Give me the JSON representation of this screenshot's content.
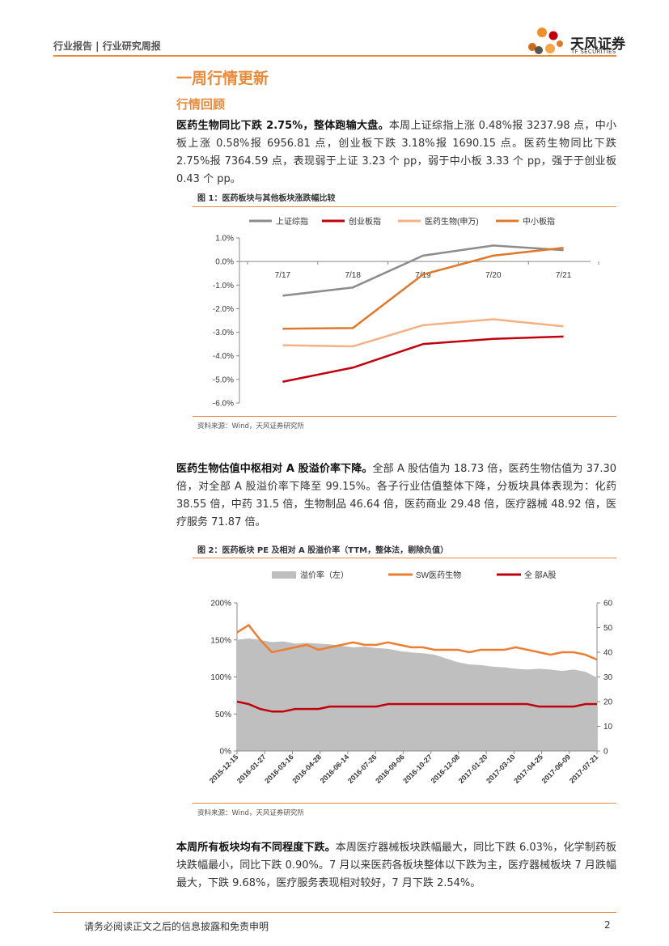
{
  "header": {
    "left_text": "行业报告 | 行业研究周报",
    "logo_text": "天风证券",
    "logo_sub": "TF SECURITIES"
  },
  "section_title": "一周行情更新",
  "subsection_title": "行情回顾",
  "para1": {
    "lead": "医药生物同比下跌 2.75%，整体跑输大盘。",
    "body": "本周上证综指上涨 0.48%报 3237.98 点，中小板上涨 0.58%报 6956.81 点，创业板下跌 3.18%报 1690.15 点。医药生物同比下跌 2.75%报 7364.59 点，表现弱于上证 3.23 个 pp，弱于中小板 3.33 个 pp，强于于创业板 0.43 个 pp。"
  },
  "fig1": {
    "title": "图 1：医药板块与其他板块涨跌幅比较",
    "source": "资料来源：Wind，天风证券研究所"
  },
  "para2": {
    "lead": "医药生物估值中枢相对 A 股溢价率下降。",
    "body": "全部 A 股估值为 18.73 倍，医药生物估值为 37.30 倍，对全部 A 股溢价率下降至 99.15%。各子行业估值整体下降，分板块具体表现为：化药 38.55 倍，中药 31.5 倍，生物制品 46.64 倍，医药商业 29.48 倍，医疗器械 48.92 倍，医疗服务 71.87 倍。"
  },
  "fig2": {
    "title": "图 2：医药板块 PE 及相对 A 股溢价率（TTM，整体法，剔除负值）",
    "source": "资料来源：Wind，天风证券研究所"
  },
  "para3": {
    "lead": "本周所有板块均有不同程度下跌。",
    "body": "本周医疗器械板块跌幅最大，同比下跌 6.03%，化学制药板块跌幅最小，同比下跌 0.90%。7 月以来医药各板块整体以下跌为主，医疗器械板块 7 月跌幅最大，下跌 9.68%，医疗服务表现相对较好，7 月下跌 2.54%。"
  },
  "footer": {
    "text": "请务必阅读正文之后的信息披露和免责申明",
    "page": "2"
  },
  "chart_data": [
    {
      "type": "line",
      "categories": [
        "7/17",
        "7/18",
        "7/19",
        "7/20",
        "7/21"
      ],
      "ylim": [
        -6,
        1
      ],
      "yticks": [
        "1.0%",
        "0.0%",
        "-1.0%",
        "-2.0%",
        "-3.0%",
        "-4.0%",
        "-5.0%",
        "-6.0%"
      ],
      "legend_position": "top",
      "series": [
        {
          "name": "上证综指",
          "color": "#8c8c8c",
          "values": [
            -1.45,
            -1.1,
            0.25,
            0.68,
            0.48
          ]
        },
        {
          "name": "创业板指",
          "color": "#c0000c",
          "values": [
            -5.1,
            -4.5,
            -3.5,
            -3.28,
            -3.18
          ]
        },
        {
          "name": "医药生物(申万)",
          "color": "#f4b183",
          "values": [
            -3.55,
            -3.6,
            -2.7,
            -2.45,
            -2.75
          ]
        },
        {
          "name": "中小板指",
          "color": "#e0782a",
          "values": [
            -2.85,
            -2.82,
            -0.55,
            0.25,
            0.58
          ]
        }
      ]
    },
    {
      "type": "area+line",
      "x_ticks": [
        "2015-12-15",
        "2016-01-27",
        "2016-03-16",
        "2016-04-28",
        "2016-06-14",
        "2016-07-26",
        "2016-09-06",
        "2016-10-27",
        "2016-12-08",
        "2017-01-20",
        "2017-03-10",
        "2017-04-25",
        "2017-06-09",
        "2017-07-21"
      ],
      "y_left_ticks": [
        "200%",
        "150%",
        "100%",
        "50%",
        "0%"
      ],
      "y_right_ticks": [
        "60",
        "50",
        "40",
        "30",
        "20",
        "10",
        "0"
      ],
      "ylim_left": [
        0,
        200
      ],
      "ylim_right": [
        0,
        60
      ],
      "legend_position": "top",
      "series": [
        {
          "name": "溢价率（左）",
          "color": "#bfbfbf",
          "axis": "left",
          "kind": "area",
          "values": [
            150,
            152,
            150,
            147,
            148,
            145,
            146,
            145,
            144,
            142,
            140,
            141,
            139,
            138,
            135,
            133,
            132,
            130,
            125,
            120,
            117,
            116,
            114,
            113,
            111,
            110,
            111,
            110,
            108,
            110,
            107,
            99
          ]
        },
        {
          "name": "SW医药生物",
          "color": "#ed7d31",
          "axis": "right",
          "kind": "line",
          "values": [
            48,
            51,
            45,
            40,
            41,
            42,
            43,
            41,
            42,
            43,
            44,
            43,
            43,
            44,
            43,
            42,
            42,
            41,
            41,
            41,
            40,
            41,
            41,
            41,
            42,
            41,
            40,
            39,
            40,
            40,
            39,
            37
          ]
        },
        {
          "name": "全 部A股",
          "color": "#c0000c",
          "axis": "right",
          "kind": "line",
          "values": [
            20,
            19,
            17,
            16,
            16,
            17,
            17,
            17,
            18,
            18,
            18,
            18,
            18,
            19,
            19,
            19,
            19,
            19,
            19,
            19,
            19,
            19,
            19,
            19,
            19,
            19,
            18,
            18,
            18,
            18,
            19,
            19
          ]
        }
      ]
    }
  ]
}
